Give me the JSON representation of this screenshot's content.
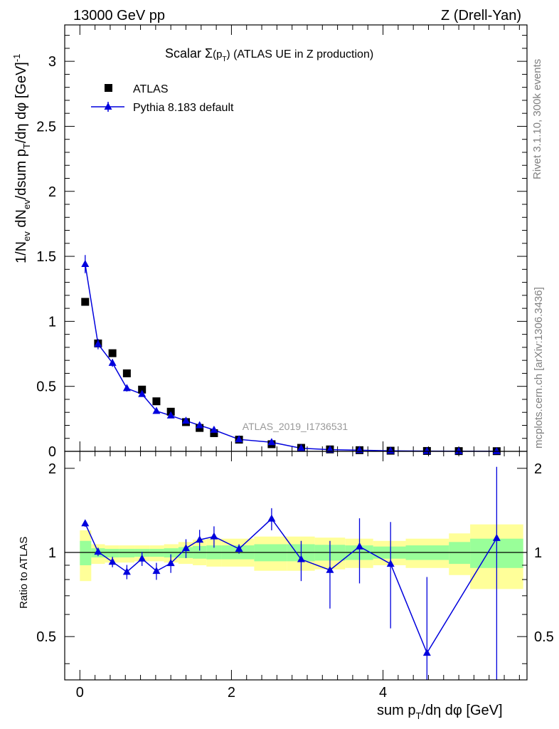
{
  "header": {
    "left": "13000 GeV pp",
    "right": "Z (Drell-Yan)"
  },
  "side": {
    "rivet": "Rivet 3.1.10,  300k events",
    "mcplots": "mcplots.cern.ch [arXiv:1306.3436]"
  },
  "chart_data": [
    {
      "type": "scatter",
      "panel": "main",
      "title": "Scalar Σ(p_T) (ATLAS UE in Z production)",
      "title_parts": {
        "pre": "Scalar ",
        "sigma": "Σ",
        "open": "(p",
        "sub": "T",
        "close": ")",
        "post": " (ATLAS UE in Z production)"
      },
      "watermark": "ATLAS_2019_I1736531",
      "ylabel": "1/N_ev dN_ev/dsum p_T/dη dφ [GeV]^-1",
      "ylabel_parts": {
        "a": "1/N",
        "a_sub": "ev",
        "b": " dN",
        "b_sub": "ev",
        "c": "/dsum p",
        "c_sub": "T",
        "d": "/dη dφ  [GeV]",
        "d_sup": "-1"
      },
      "xlim": [
        -0.2,
        5.9
      ],
      "ylim": [
        0,
        3.28
      ],
      "yticks": [
        0,
        0.5,
        1,
        1.5,
        2,
        2.5,
        3
      ],
      "ytick_labels": [
        "0",
        "0.5",
        "1",
        "1.5",
        "2",
        "2.5",
        "3"
      ],
      "legend": [
        {
          "name": "ATLAS",
          "marker": "square",
          "color": "#000000"
        },
        {
          "name": "Pythia 8.183 default",
          "marker": "triangle",
          "color": "#0000dd"
        }
      ],
      "series": [
        {
          "name": "ATLAS",
          "x": [
            0.07,
            0.24,
            0.43,
            0.62,
            0.82,
            1.01,
            1.2,
            1.4,
            1.58,
            1.77,
            2.1,
            2.53,
            2.92,
            3.3,
            3.69,
            4.1,
            4.58,
            5.0,
            5.5
          ],
          "y": [
            1.15,
            0.83,
            0.755,
            0.6,
            0.475,
            0.385,
            0.305,
            0.225,
            0.18,
            0.14,
            0.09,
            0.055,
            0.027,
            0.015,
            0.009,
            0.005,
            0.003,
            0.002,
            0.0015
          ]
        },
        {
          "name": "Pythia 8.183 default",
          "x": [
            0.07,
            0.24,
            0.43,
            0.62,
            0.82,
            1.01,
            1.2,
            1.4,
            1.58,
            1.77,
            2.1,
            2.53,
            2.92,
            3.3,
            3.69,
            4.1,
            4.58,
            5.0,
            5.5
          ],
          "y": [
            1.44,
            0.825,
            0.68,
            0.485,
            0.44,
            0.31,
            0.275,
            0.235,
            0.2,
            0.165,
            0.092,
            0.07,
            0.024,
            0.013,
            0.009,
            0.004,
            0.002,
            0.0015,
            0.001
          ],
          "yerr": [
            0.07,
            0.04,
            0.03,
            0.025,
            0.02,
            0.015,
            0.014,
            0.012,
            0.01,
            0.01,
            0.006,
            0.005,
            0.002,
            0.002,
            0.001,
            0.001,
            0.001,
            0.001,
            0.001
          ]
        }
      ]
    },
    {
      "type": "line",
      "panel": "ratio",
      "xlabel": "sum p_T/dη dφ [GeV]",
      "xlabel_parts": {
        "a": "sum p",
        "a_sub": "T",
        "b": "/dη dφ [GeV]"
      },
      "ylabel": "Ratio to ATLAS",
      "xlim": [
        -0.2,
        5.9
      ],
      "ylim": [
        0.35,
        2.3
      ],
      "xticks": [
        0,
        2,
        4
      ],
      "xtick_labels": [
        "0",
        "2",
        "4"
      ],
      "yticks": [
        0.5,
        1,
        2
      ],
      "ytick_labels": [
        "0.5",
        "1",
        "2"
      ],
      "reference_line": 1,
      "bands": {
        "edges": [
          0.0,
          0.15,
          0.33,
          0.52,
          0.72,
          0.92,
          1.11,
          1.3,
          1.49,
          1.67,
          1.87,
          2.3,
          2.73,
          3.1,
          3.5,
          3.87,
          4.3,
          4.87,
          5.15,
          5.85
        ],
        "yellow_lo": [
          0.79,
          0.91,
          0.92,
          0.92,
          0.93,
          0.93,
          0.92,
          0.91,
          0.9,
          0.89,
          0.89,
          0.86,
          0.86,
          0.87,
          0.88,
          0.9,
          0.88,
          0.83,
          0.74
        ],
        "yellow_hi": [
          1.2,
          1.07,
          1.06,
          1.06,
          1.06,
          1.06,
          1.07,
          1.09,
          1.11,
          1.12,
          1.12,
          1.14,
          1.14,
          1.13,
          1.12,
          1.1,
          1.12,
          1.17,
          1.26
        ],
        "green_lo": [
          0.9,
          0.96,
          0.96,
          0.96,
          0.965,
          0.965,
          0.96,
          0.955,
          0.95,
          0.945,
          0.945,
          0.93,
          0.93,
          0.935,
          0.94,
          0.95,
          0.94,
          0.91,
          0.88
        ],
        "green_hi": [
          1.1,
          1.035,
          1.03,
          1.03,
          1.03,
          1.03,
          1.035,
          1.045,
          1.055,
          1.06,
          1.06,
          1.07,
          1.07,
          1.065,
          1.06,
          1.05,
          1.06,
          1.09,
          1.12
        ]
      },
      "series": [
        {
          "name": "Pythia 8.183 default / ATLAS",
          "x": [
            0.07,
            0.24,
            0.43,
            0.62,
            0.82,
            1.01,
            1.2,
            1.4,
            1.58,
            1.77,
            2.1,
            2.53,
            2.92,
            3.3,
            3.69,
            4.1,
            4.58,
            5.5
          ],
          "y": [
            1.27,
            1.005,
            0.925,
            0.852,
            0.95,
            0.858,
            0.915,
            1.035,
            1.11,
            1.14,
            1.03,
            1.32,
            0.945,
            0.865,
            1.05,
            0.91,
            0.437,
            1.125
          ],
          "err_lo": [
            0.035,
            0.035,
            0.04,
            0.05,
            0.055,
            0.06,
            0.07,
            0.08,
            0.095,
            0.1,
            0.04,
            0.12,
            0.155,
            0.235,
            0.275,
            0.375,
            0.4,
            0.9
          ],
          "err_hi": [
            0.035,
            0.035,
            0.04,
            0.05,
            0.055,
            0.06,
            0.07,
            0.08,
            0.095,
            0.1,
            0.04,
            0.12,
            0.155,
            0.235,
            0.275,
            0.375,
            0.38,
            0.9
          ]
        }
      ]
    }
  ]
}
